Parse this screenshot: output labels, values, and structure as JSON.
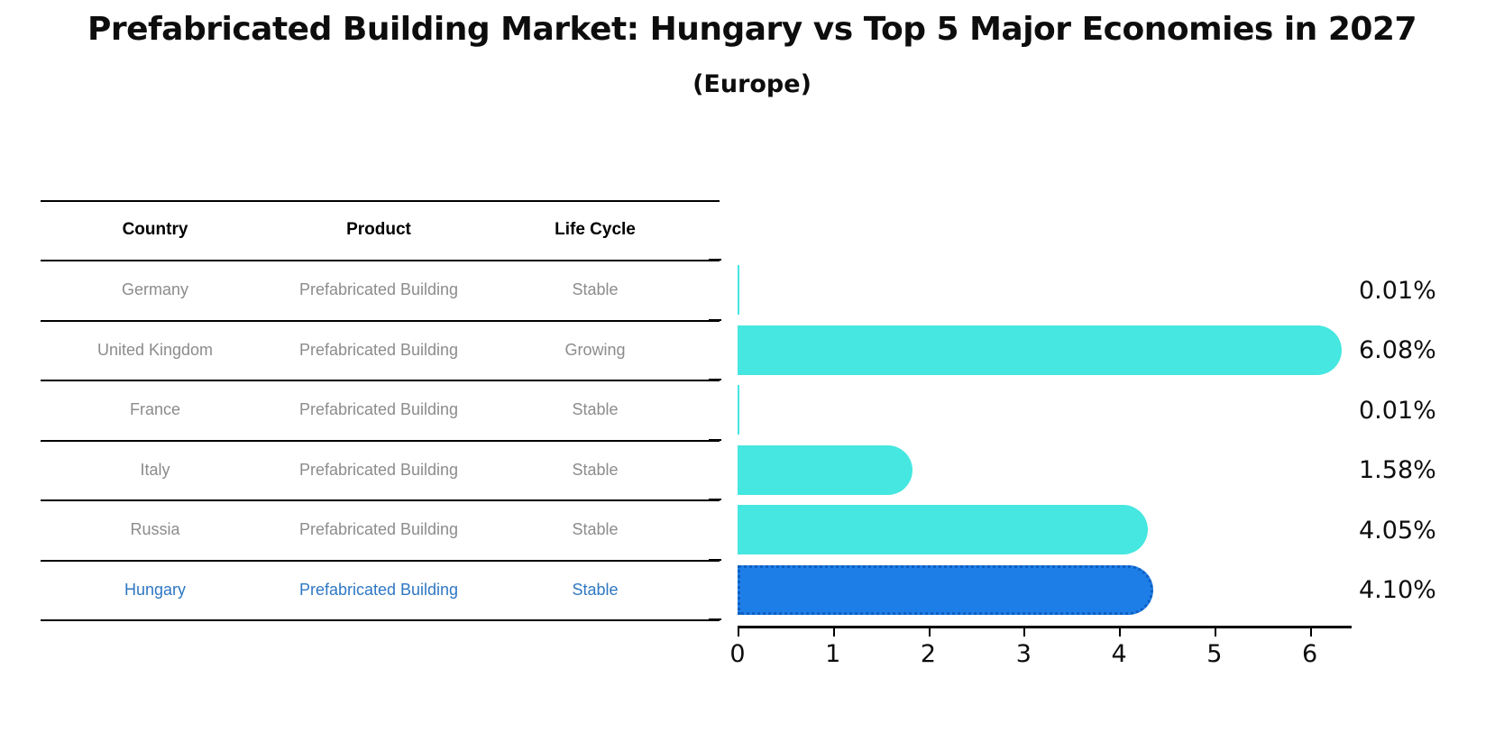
{
  "title": "Prefabricated Building Market: Hungary vs Top 5 Major Economies in 2027",
  "subtitle": "(Europe)",
  "table": {
    "headers": [
      "Country",
      "Product",
      "Life Cycle"
    ],
    "rows": [
      {
        "country": "Germany",
        "product": "Prefabricated Building",
        "life_cycle": "Stable",
        "highlight": false
      },
      {
        "country": "United Kingdom",
        "product": "Prefabricated Building",
        "life_cycle": "Growing",
        "highlight": false
      },
      {
        "country": "France",
        "product": "Prefabricated Building",
        "life_cycle": "Stable",
        "highlight": false
      },
      {
        "country": "Italy",
        "product": "Prefabricated Building",
        "life_cycle": "Stable",
        "highlight": false
      },
      {
        "country": "Russia",
        "product": "Prefabricated Building",
        "life_cycle": "Stable",
        "highlight": false
      },
      {
        "country": "Hungary",
        "product": "Prefabricated Building",
        "life_cycle": "Stable",
        "highlight": true
      }
    ]
  },
  "chart_data": {
    "type": "bar",
    "orientation": "horizontal",
    "title": "Prefabricated Building Market: Hungary vs Top 5 Major Economies in 2027 (Europe)",
    "categories": [
      "Germany",
      "United Kingdom",
      "France",
      "Italy",
      "Russia",
      "Hungary"
    ],
    "values": [
      0.01,
      6.08,
      0.01,
      1.58,
      4.05,
      4.1
    ],
    "value_labels": [
      "0.01%",
      "6.08%",
      "0.01%",
      "1.58%",
      "4.05%",
      "4.10%"
    ],
    "x_ticks": [
      0,
      1,
      2,
      3,
      4,
      5,
      6
    ],
    "xlim": [
      0,
      6.42
    ],
    "xlabel": "",
    "ylabel": "",
    "grid": false,
    "legend": false,
    "highlight_index": 5,
    "bar_color": "#45E7E0",
    "highlight_color": "#1E7EE8"
  },
  "colors": {
    "row_text": "#8C8C8C",
    "highlight_text": "#2E77C4",
    "axis": "#000000"
  }
}
